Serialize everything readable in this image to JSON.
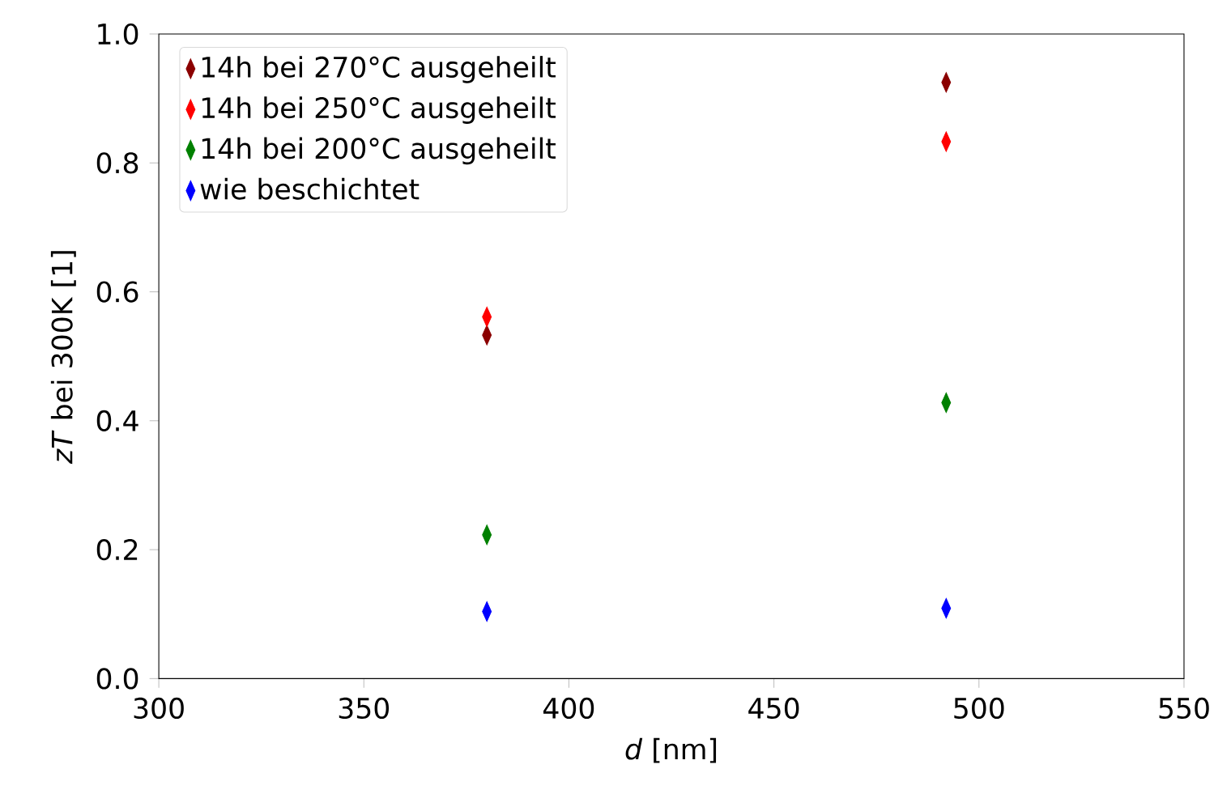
{
  "chart_data": {
    "type": "scatter",
    "xlabel": "*d* [nm]",
    "ylabel": "*zT* bei 300K [1]",
    "x": [
      380,
      492
    ],
    "series": [
      {
        "name": "14h bei 270°C ausgeheilt",
        "color": "#8b0000",
        "values": [
          0.533,
          0.925
        ]
      },
      {
        "name": "14h bei 250°C ausgeheilt",
        "color": "#ff0000",
        "values": [
          0.561,
          0.833
        ]
      },
      {
        "name": "14h bei 200°C ausgeheilt",
        "color": "#008000",
        "values": [
          0.223,
          0.428
        ]
      },
      {
        "name": "wie beschichtet",
        "color": "#0000ff",
        "values": [
          0.104,
          0.109
        ]
      }
    ],
    "xlim": [
      300,
      550
    ],
    "ylim": [
      0,
      1.0
    ],
    "xticks": [
      300,
      350,
      400,
      450,
      500,
      550
    ],
    "yticks": [
      {
        "value": 0,
        "label": "0.0"
      },
      0.2,
      0.4,
      0.6,
      0.8,
      {
        "value": 1.0,
        "label": "1.0"
      }
    ],
    "legend": "top left",
    "marker": "diamond"
  }
}
